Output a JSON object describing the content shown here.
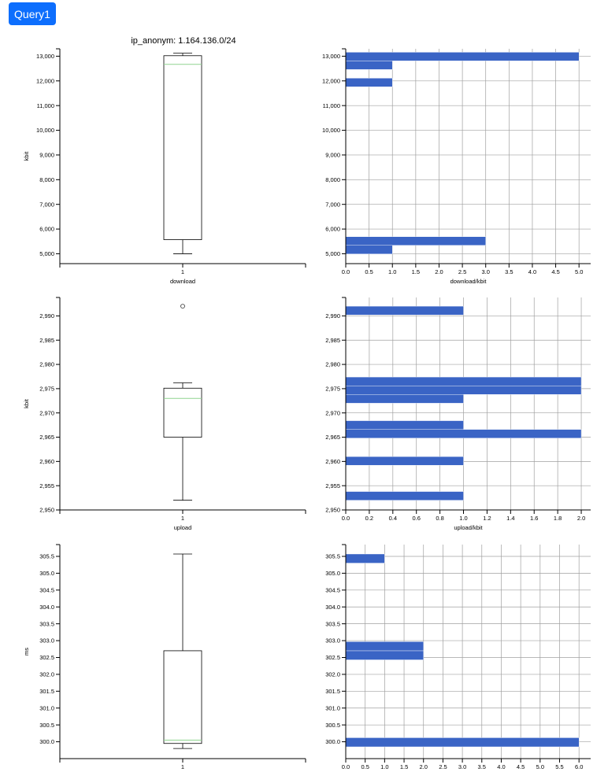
{
  "query_button": {
    "label": "Query1"
  },
  "title": "ip_anonym: 1.164.136.0/24",
  "colors": {
    "bar": "#3a64c5",
    "median": "#8fd48f",
    "axis": "#000000",
    "grid": "#a0a0a0",
    "button": "#0d6efd"
  },
  "chart_data": [
    {
      "type": "box",
      "ylabel": "kbit",
      "xlabel": "download",
      "ylim": [
        4600,
        13300
      ],
      "yticks": [
        5000,
        6000,
        7000,
        8000,
        9000,
        10000,
        11000,
        12000,
        13000
      ],
      "tick_labels": [
        "5,000",
        "6,000",
        "7,000",
        "8,000",
        "9,000",
        "10,000",
        "11,000",
        "12,000",
        "13,000"
      ],
      "category": "1",
      "box": {
        "whisker_low": 5000,
        "q1": 5570,
        "median": 12670,
        "q3": 13020,
        "whisker_high": 13120
      },
      "outliers": []
    },
    {
      "type": "bar",
      "orientation": "horizontal",
      "xlabel": "download/kbit",
      "ylim": [
        4600,
        13300
      ],
      "yticks": [
        5000,
        6000,
        7000,
        8000,
        9000,
        10000,
        11000,
        12000,
        13000
      ],
      "tick_labels": [
        "5,000",
        "6,000",
        "7,000",
        "8,000",
        "9,000",
        "10,000",
        "11,000",
        "12,000",
        "13,000"
      ],
      "xlim": [
        0,
        5.25
      ],
      "xticks": [
        0,
        0.5,
        1,
        1.5,
        2,
        2.5,
        3,
        3.5,
        4,
        4.5,
        5
      ],
      "xtick_labels": [
        "0.0",
        "0.5",
        "1.0",
        "1.5",
        "2.0",
        "2.5",
        "3.0",
        "3.5",
        "4.0",
        "4.5",
        "5.0"
      ],
      "bars": [
        {
          "from": 4990,
          "to": 5340,
          "value": 1
        },
        {
          "from": 5340,
          "to": 5690,
          "value": 3
        },
        {
          "from": 11760,
          "to": 12110,
          "value": 1
        },
        {
          "from": 12460,
          "to": 12810,
          "value": 1
        },
        {
          "from": 12810,
          "to": 13160,
          "value": 5
        }
      ]
    },
    {
      "type": "box",
      "ylabel": "kbit",
      "xlabel": "upload",
      "ylim": [
        2950,
        2993.8
      ],
      "yticks": [
        2950,
        2955,
        2960,
        2965,
        2970,
        2975,
        2980,
        2985,
        2990
      ],
      "tick_labels": [
        "2,950",
        "2,955",
        "2,960",
        "2,965",
        "2,970",
        "2,975",
        "2,980",
        "2,985",
        "2,990"
      ],
      "category": "1",
      "box": {
        "whisker_low": 2952,
        "q1": 2965,
        "median": 2973,
        "q3": 2975.1,
        "whisker_high": 2976.2
      },
      "outliers": [
        2992
      ]
    },
    {
      "type": "bar",
      "orientation": "horizontal",
      "xlabel": "upload/kbit",
      "ylim": [
        2950,
        2993.8
      ],
      "yticks": [
        2950,
        2955,
        2960,
        2965,
        2970,
        2975,
        2980,
        2985,
        2990
      ],
      "tick_labels": [
        "2,950",
        "2,955",
        "2,960",
        "2,965",
        "2,970",
        "2,975",
        "2,980",
        "2,985",
        "2,990"
      ],
      "xlim": [
        0,
        2.08
      ],
      "xticks": [
        0,
        0.2,
        0.4,
        0.6,
        0.8,
        1,
        1.2,
        1.4,
        1.6,
        1.8,
        2
      ],
      "xtick_labels": [
        "0.0",
        "0.2",
        "0.4",
        "0.6",
        "0.8",
        "1.0",
        "1.2",
        "1.4",
        "1.6",
        "1.8",
        "2.0"
      ],
      "bars": [
        {
          "from": 2952,
          "to": 2953.8,
          "value": 1
        },
        {
          "from": 2959.2,
          "to": 2961,
          "value": 1
        },
        {
          "from": 2964.8,
          "to": 2966.6,
          "value": 2
        },
        {
          "from": 2966.6,
          "to": 2968.4,
          "value": 1
        },
        {
          "from": 2972.0,
          "to": 2973.8,
          "value": 1
        },
        {
          "from": 2973.8,
          "to": 2975.6,
          "value": 2
        },
        {
          "from": 2975.6,
          "to": 2977.4,
          "value": 2
        },
        {
          "from": 2990.2,
          "to": 2992,
          "value": 1
        }
      ]
    },
    {
      "type": "box",
      "ylabel": "ms",
      "xlabel": "",
      "ylim": [
        299.5,
        305.85
      ],
      "yticks": [
        300,
        300.5,
        301,
        301.5,
        302,
        302.5,
        303,
        303.5,
        304,
        304.5,
        305,
        305.5
      ],
      "tick_labels": [
        "300.0",
        "300.5",
        "301.0",
        "301.5",
        "302.0",
        "302.5",
        "303.0",
        "303.5",
        "304.0",
        "304.5",
        "305.0",
        "305.5"
      ],
      "category": "1",
      "box": {
        "whisker_low": 299.8,
        "q1": 299.95,
        "median": 300.05,
        "q3": 302.7,
        "whisker_high": 305.57
      },
      "outliers": []
    },
    {
      "type": "bar",
      "orientation": "horizontal",
      "xlabel": "",
      "ylim": [
        299.5,
        305.85
      ],
      "yticks": [
        300,
        300.5,
        301,
        301.5,
        302,
        302.5,
        303,
        303.5,
        304,
        304.5,
        305,
        305.5
      ],
      "tick_labels": [
        "300.0",
        "300.5",
        "301.0",
        "301.5",
        "302.0",
        "302.5",
        "303.0",
        "303.5",
        "304.0",
        "304.5",
        "305.0",
        "305.5"
      ],
      "xlim": [
        0,
        6.3
      ],
      "xticks": [
        0,
        0.5,
        1,
        1.5,
        2,
        2.5,
        3,
        3.5,
        4,
        4.5,
        5,
        5.5,
        6
      ],
      "xtick_labels": [
        "0.0",
        "0.5",
        "1.0",
        "1.5",
        "2.0",
        "2.5",
        "3.0",
        "3.5",
        "4.0",
        "4.5",
        "5.0",
        "5.5",
        "6.0"
      ],
      "bars": [
        {
          "from": 299.85,
          "to": 300.12,
          "value": 6
        },
        {
          "from": 302.43,
          "to": 302.7,
          "value": 2
        },
        {
          "from": 302.7,
          "to": 302.97,
          "value": 2
        },
        {
          "from": 305.3,
          "to": 305.57,
          "value": 1
        }
      ]
    }
  ]
}
